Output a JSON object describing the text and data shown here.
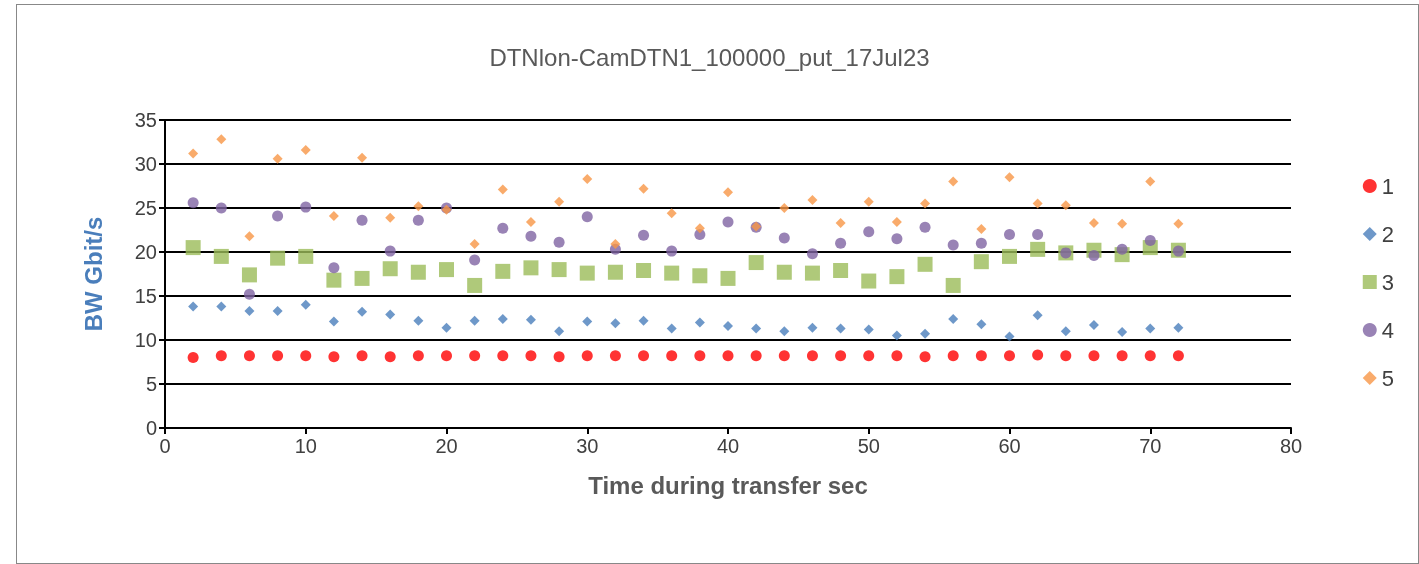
{
  "chart_data": {
    "type": "scatter",
    "title": "DTNlon-CamDTN1_100000_put_17Jul23",
    "xlabel": "Time during transfer sec",
    "ylabel": "BW Gbit/s",
    "x": [
      2,
      4,
      6,
      8,
      10,
      12,
      14,
      16,
      18,
      20,
      22,
      24,
      26,
      28,
      30,
      32,
      34,
      36,
      38,
      40,
      42,
      44,
      46,
      48,
      50,
      52,
      54,
      56,
      58,
      60,
      62,
      64,
      66,
      68,
      70,
      72
    ],
    "series": [
      {
        "name": "1",
        "color": "#ff0000",
        "marker": "circle",
        "values": [
          8.0,
          8.2,
          8.2,
          8.2,
          8.2,
          8.1,
          8.2,
          8.1,
          8.2,
          8.2,
          8.2,
          8.2,
          8.2,
          8.1,
          8.2,
          8.2,
          8.2,
          8.2,
          8.2,
          8.2,
          8.2,
          8.2,
          8.2,
          8.2,
          8.2,
          8.2,
          8.1,
          8.2,
          8.2,
          8.2,
          8.3,
          8.2,
          8.2,
          8.2,
          8.2,
          8.2
        ]
      },
      {
        "name": "2",
        "color": "#4a7ebb",
        "marker": "diamond",
        "values": [
          13.8,
          13.8,
          13.3,
          13.3,
          14.0,
          12.1,
          13.2,
          12.9,
          12.2,
          11.4,
          12.2,
          12.4,
          12.3,
          11.0,
          12.1,
          11.9,
          12.2,
          11.3,
          12.0,
          11.6,
          11.3,
          11.0,
          11.4,
          11.3,
          11.2,
          10.5,
          10.7,
          12.4,
          11.8,
          10.4,
          12.8,
          11.0,
          11.7,
          10.9,
          11.3,
          11.4
        ]
      },
      {
        "name": "3",
        "color": "#9bbb59",
        "marker": "square",
        "values": [
          20.5,
          19.5,
          17.4,
          19.3,
          19.5,
          16.8,
          17.0,
          18.1,
          17.7,
          18.0,
          16.2,
          17.8,
          18.2,
          18.0,
          17.6,
          17.7,
          17.9,
          17.6,
          17.3,
          17.0,
          18.8,
          17.7,
          17.6,
          17.9,
          16.7,
          17.2,
          18.6,
          16.2,
          18.9,
          19.5,
          20.3,
          19.9,
          20.2,
          19.7,
          20.5,
          20.2
        ]
      },
      {
        "name": "4",
        "color": "#8064a2",
        "marker": "circle",
        "values": [
          25.6,
          25.0,
          15.2,
          24.1,
          25.1,
          18.2,
          23.6,
          20.1,
          23.6,
          25.0,
          19.1,
          22.7,
          21.8,
          21.1,
          24.0,
          20.3,
          21.9,
          20.1,
          22.0,
          23.4,
          22.8,
          21.6,
          19.8,
          21.0,
          22.3,
          21.5,
          22.8,
          20.8,
          21.0,
          22.0,
          22.0,
          19.9,
          19.6,
          20.3,
          21.3,
          20.1
        ]
      },
      {
        "name": "5",
        "color": "#f79646",
        "marker": "diamond",
        "values": [
          31.2,
          32.8,
          21.8,
          30.6,
          31.6,
          24.1,
          30.7,
          23.9,
          25.2,
          24.8,
          20.9,
          27.1,
          23.4,
          25.7,
          28.3,
          20.9,
          27.2,
          24.4,
          22.7,
          26.8,
          22.9,
          25.0,
          25.9,
          23.3,
          25.7,
          23.4,
          25.5,
          28.0,
          22.6,
          28.5,
          25.5,
          25.3,
          23.3,
          23.2,
          28.0,
          23.2
        ]
      }
    ],
    "xlim": [
      0,
      80
    ],
    "xticks": [
      0,
      10,
      20,
      30,
      40,
      50,
      60,
      70,
      80
    ],
    "ylim": [
      0,
      35
    ],
    "yticks": [
      0,
      5,
      10,
      15,
      20,
      25,
      30,
      35
    ],
    "grid": "y",
    "legend": "right"
  }
}
